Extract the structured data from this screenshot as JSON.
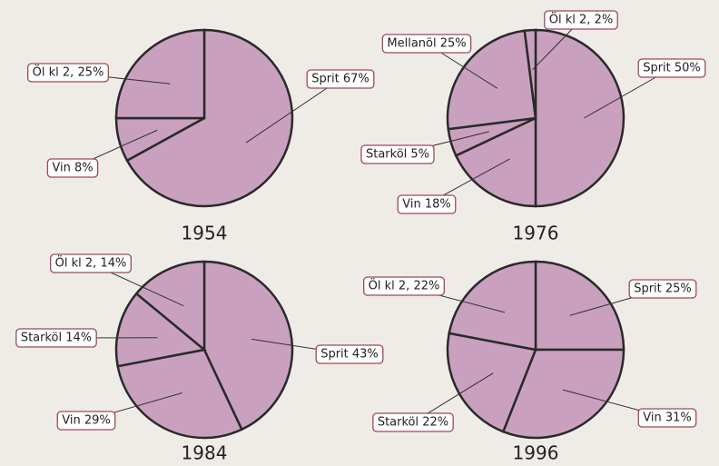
{
  "chart_data": [
    {
      "type": "pie",
      "title": "1954",
      "color": "#c9a1be",
      "values": [
        67,
        8,
        25
      ],
      "value_labels": [
        "Sprit 67%",
        "Vin 8%",
        "Öl kl 2, 25%"
      ]
    },
    {
      "type": "pie",
      "title": "1976",
      "color": "#c9a1be",
      "values": [
        50,
        18,
        5,
        25,
        2
      ],
      "value_labels": [
        "Sprit 50%",
        "Vin 18%",
        "Starköl 5%",
        "Mellanöl 25%",
        "Öl kl 2, 2%"
      ]
    },
    {
      "type": "pie",
      "title": "1984",
      "color": "#c9a1be",
      "values": [
        43,
        29,
        14,
        14
      ],
      "value_labels": [
        "Sprit 43%",
        "Vin 29%",
        "Starköl 14%",
        "Öl kl 2, 14%"
      ]
    },
    {
      "type": "pie",
      "title": "1996",
      "color": "#c9a1be",
      "values": [
        25,
        31,
        22,
        22
      ],
      "value_labels": [
        "Sprit 25%",
        "Vin 31%",
        "Starköl 22%",
        "Öl kl 2, 22%"
      ]
    }
  ]
}
